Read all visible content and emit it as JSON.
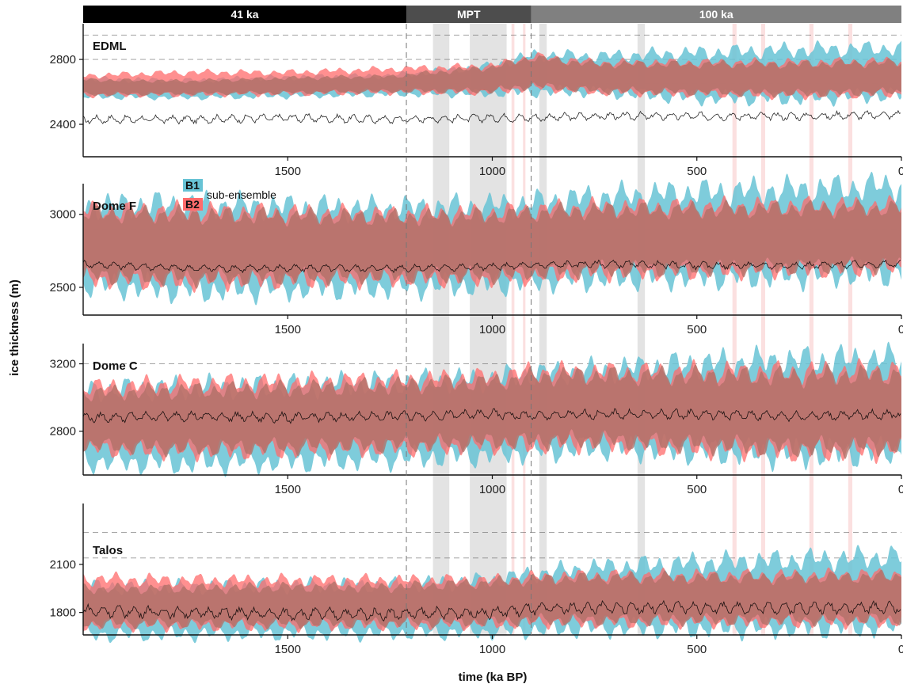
{
  "chart_data": {
    "type": "area",
    "xlabel": "time (ka BP)",
    "ylabel": "ice thickness (m)",
    "xlim": [
      2000,
      0
    ],
    "x_ticks": [
      1500,
      1000,
      500,
      0
    ],
    "x_tick_labels": [
      "1500",
      "1000",
      "500",
      "0"
    ],
    "eras": [
      {
        "label": "41 ka",
        "from": 2000,
        "to": 1210,
        "color": "#000000"
      },
      {
        "label": "MPT",
        "from": 1210,
        "to": 905,
        "color": "#4d4d4d"
      },
      {
        "label": "100 ka",
        "from": 905,
        "to": 0,
        "color": "#808080"
      }
    ],
    "era_boundaries": [
      1210,
      905
    ],
    "grey_bands": [
      [
        1145,
        1105
      ],
      [
        1055,
        965
      ],
      [
        885,
        867
      ],
      [
        645,
        627
      ]
    ],
    "pink_bands": [
      [
        953,
        946
      ],
      [
        925,
        919
      ],
      [
        413,
        403
      ],
      [
        343,
        333
      ],
      [
        225,
        215
      ],
      [
        130,
        120
      ]
    ],
    "legend": {
      "items": [
        {
          "key": "B1",
          "color": "#67c3d5"
        },
        {
          "key": "B2",
          "color": "#ff6b6b"
        }
      ],
      "text": "sub-ensemble"
    },
    "series_colors": {
      "B1": "#67c3d5",
      "B2": "#ff6b6b",
      "overlap": "#b07068",
      "observed": "#000000"
    },
    "panels": [
      {
        "label": "EDML",
        "ylim": [
          2200,
          3020
        ],
        "y_ticks": [
          2400,
          2800
        ],
        "y_tick_labels": [
          "2400",
          "2800"
        ],
        "ref_lines": [
          2950,
          2800,
          2650
        ],
        "x": [
          2000,
          1750,
          1500,
          1250,
          1000,
          900,
          750,
          500,
          250,
          0
        ],
        "B1_lower": [
          2570,
          2565,
          2575,
          2585,
          2590,
          2600,
          2600,
          2560,
          2560,
          2580
        ],
        "B1_upper": [
          2680,
          2670,
          2690,
          2700,
          2760,
          2830,
          2820,
          2840,
          2860,
          2870
        ],
        "B2_lower": [
          2580,
          2585,
          2590,
          2600,
          2600,
          2630,
          2600,
          2590,
          2580,
          2590
        ],
        "B2_upper": [
          2700,
          2720,
          2720,
          2740,
          2760,
          2820,
          2780,
          2780,
          2780,
          2790
        ],
        "observed": [
          2430,
          2430,
          2440,
          2430,
          2440,
          2440,
          2450,
          2450,
          2450,
          2460
        ],
        "observed_amplitude": 30
      },
      {
        "label": "Dome F",
        "ylim": [
          2310,
          3210
        ],
        "y_ticks": [
          2500,
          3000
        ],
        "y_tick_labels": [
          "2500",
          "3000"
        ],
        "ref_lines": [
          2900
        ],
        "x": [
          2000,
          1750,
          1500,
          1250,
          1000,
          900,
          750,
          500,
          250,
          0
        ],
        "B1_lower": [
          2520,
          2480,
          2490,
          2500,
          2520,
          2540,
          2560,
          2570,
          2580,
          2600
        ],
        "B1_upper": [
          3060,
          3070,
          3050,
          3040,
          3060,
          3080,
          3120,
          3150,
          3170,
          3200
        ],
        "B2_lower": [
          2560,
          2540,
          2550,
          2560,
          2560,
          2580,
          2600,
          2610,
          2620,
          2630
        ],
        "B2_upper": [
          3030,
          3020,
          3010,
          3000,
          3010,
          3030,
          3050,
          3050,
          3060,
          3060
        ],
        "observed": [
          2660,
          2630,
          2630,
          2630,
          2640,
          2650,
          2660,
          2650,
          2650,
          2660
        ],
        "observed_amplitude": 30
      },
      {
        "label": "Dome C",
        "ylim": [
          2540,
          3320
        ],
        "y_ticks": [
          2800,
          3200
        ],
        "y_tick_labels": [
          "2800",
          "3200"
        ],
        "ref_lines": [
          3200
        ],
        "x": [
          2000,
          1750,
          1500,
          1250,
          1000,
          900,
          750,
          500,
          250,
          0
        ],
        "B1_lower": [
          2620,
          2610,
          2620,
          2640,
          2660,
          2680,
          2700,
          2680,
          2660,
          2680
        ],
        "B1_upper": [
          3040,
          3060,
          3070,
          3090,
          3110,
          3140,
          3160,
          3200,
          3220,
          3230
        ],
        "B2_lower": [
          2700,
          2680,
          2690,
          2700,
          2720,
          2720,
          2730,
          2700,
          2680,
          2690
        ],
        "B2_upper": [
          3060,
          3080,
          3090,
          3100,
          3120,
          3150,
          3150,
          3150,
          3150,
          3160
        ],
        "observed": [
          2880,
          2890,
          2880,
          2890,
          2900,
          2890,
          2900,
          2900,
          2890,
          2900
        ],
        "observed_amplitude": 35
      },
      {
        "label": "Talos",
        "ylim": [
          1660,
          2480
        ],
        "y_ticks": [
          1800,
          2100
        ],
        "y_tick_labels": [
          "1800",
          "2100"
        ],
        "ref_lines": [
          2300,
          2140
        ],
        "x": [
          2000,
          1750,
          1500,
          1250,
          1000,
          900,
          750,
          500,
          250,
          0
        ],
        "B1_lower": [
          1660,
          1665,
          1670,
          1670,
          1680,
          1690,
          1700,
          1700,
          1700,
          1710
        ],
        "B1_upper": [
          1960,
          1960,
          1970,
          1970,
          2000,
          2040,
          2080,
          2110,
          2130,
          2150
        ],
        "B2_lower": [
          1720,
          1720,
          1720,
          1725,
          1730,
          1740,
          1740,
          1740,
          1740,
          1745
        ],
        "B2_upper": [
          2010,
          2000,
          2000,
          2000,
          2000,
          2020,
          2030,
          2030,
          2030,
          2040
        ],
        "observed": [
          1810,
          1800,
          1790,
          1790,
          1800,
          1820,
          1830,
          1830,
          1830,
          1830
        ],
        "observed_amplitude": 45
      }
    ]
  }
}
